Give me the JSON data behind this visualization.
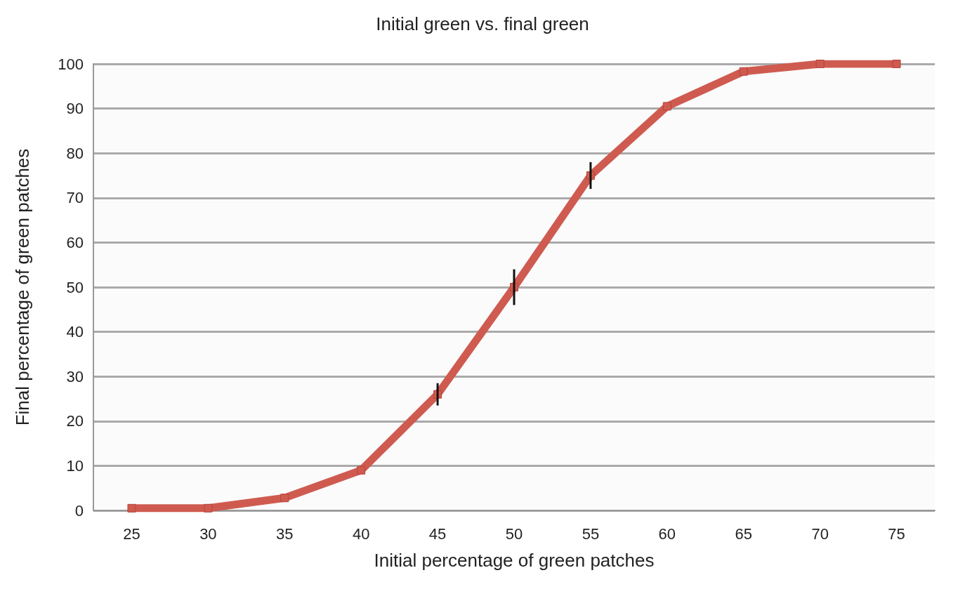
{
  "chart_data": {
    "type": "line",
    "title": "Initial green vs. final green",
    "xlabel": "Initial percentage of green patches",
    "ylabel": "Final percentage of green patches",
    "categories": [
      "25",
      "30",
      "35",
      "40",
      "45",
      "50",
      "55",
      "60",
      "65",
      "70",
      "75"
    ],
    "series": [
      {
        "color": "#cf5b50",
        "values": [
          0.5,
          0.5,
          2.8,
          9,
          26,
          50,
          75,
          90.5,
          98.3,
          100,
          100
        ],
        "errors": [
          null,
          null,
          null,
          null,
          2.5,
          4,
          3,
          null,
          null,
          null,
          null
        ]
      }
    ],
    "ylim": [
      0,
      100
    ],
    "yticks": [
      0,
      10,
      20,
      30,
      40,
      50,
      60,
      70,
      80,
      90,
      100
    ],
    "grid": "y",
    "marker": "square",
    "line_style": "solid"
  }
}
